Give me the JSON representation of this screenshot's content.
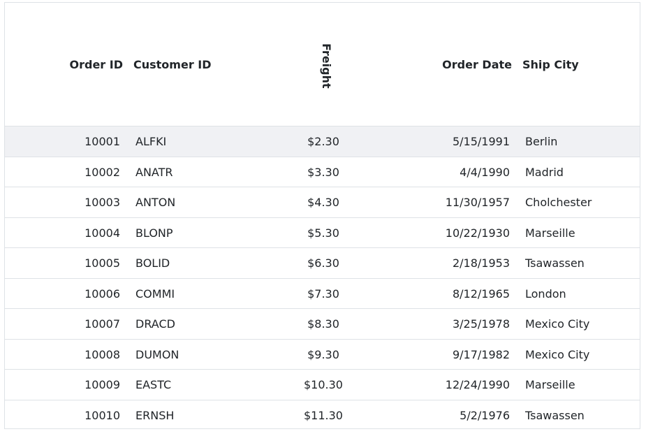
{
  "grid": {
    "columns": {
      "order_id": "Order ID",
      "customer_id": "Customer ID",
      "freight": "Freight",
      "order_date": "Order Date",
      "ship_city": "Ship City"
    },
    "rows": [
      {
        "order_id": "10001",
        "customer_id": "ALFKI",
        "freight": "$2.30",
        "order_date": "5/15/1991",
        "ship_city": "Berlin"
      },
      {
        "order_id": "10002",
        "customer_id": "ANATR",
        "freight": "$3.30",
        "order_date": "4/4/1990",
        "ship_city": "Madrid"
      },
      {
        "order_id": "10003",
        "customer_id": "ANTON",
        "freight": "$4.30",
        "order_date": "11/30/1957",
        "ship_city": "Cholchester"
      },
      {
        "order_id": "10004",
        "customer_id": "BLONP",
        "freight": "$5.30",
        "order_date": "10/22/1930",
        "ship_city": "Marseille"
      },
      {
        "order_id": "10005",
        "customer_id": "BOLID",
        "freight": "$6.30",
        "order_date": "2/18/1953",
        "ship_city": "Tsawassen"
      },
      {
        "order_id": "10006",
        "customer_id": "COMMI",
        "freight": "$7.30",
        "order_date": "8/12/1965",
        "ship_city": "London"
      },
      {
        "order_id": "10007",
        "customer_id": "DRACD",
        "freight": "$8.30",
        "order_date": "3/25/1978",
        "ship_city": "Mexico City"
      },
      {
        "order_id": "10008",
        "customer_id": "DUMON",
        "freight": "$9.30",
        "order_date": "9/17/1982",
        "ship_city": "Mexico City"
      },
      {
        "order_id": "10009",
        "customer_id": "EASTC",
        "freight": "$10.30",
        "order_date": "12/24/1990",
        "ship_city": "Marseille"
      },
      {
        "order_id": "10010",
        "customer_id": "ERNSH",
        "freight": "$11.30",
        "order_date": "5/2/1976",
        "ship_city": "Tsawassen"
      }
    ],
    "selected_row_index": 0,
    "colors": {
      "border": "#dee2e6",
      "selected_row": "#f0f1f4",
      "text": "#212529"
    }
  }
}
